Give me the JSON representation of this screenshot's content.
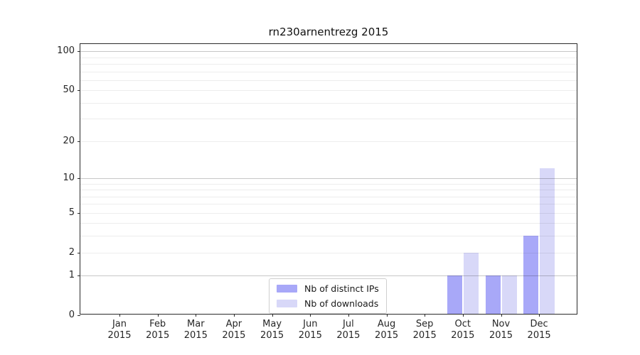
{
  "chart_data": {
    "type": "bar",
    "title": "rn230arnentrezg 2015",
    "categories": [
      "Jan 2015",
      "Feb 2015",
      "Mar 2015",
      "Apr 2015",
      "May 2015",
      "Jun 2015",
      "Jul 2015",
      "Aug 2015",
      "Sep 2015",
      "Oct 2015",
      "Nov 2015",
      "Dec 2015"
    ],
    "x_tick_months": [
      "Jan",
      "Feb",
      "Mar",
      "Apr",
      "May",
      "Jun",
      "Jul",
      "Aug",
      "Sep",
      "Oct",
      "Nov",
      "Dec"
    ],
    "x_tick_year": "2015",
    "series": [
      {
        "name": "Nb of distinct IPs",
        "color": "#a8a8f8",
        "values": [
          0,
          0,
          0,
          0,
          0,
          0,
          0,
          0,
          0,
          1,
          1,
          3
        ]
      },
      {
        "name": "Nb of downloads",
        "color": "#d8d8f8",
        "values": [
          0,
          0,
          0,
          0,
          0,
          0,
          0,
          0,
          0,
          2,
          1,
          12
        ]
      }
    ],
    "y_axis": {
      "scale": "log10(1+value)",
      "tick_values": [
        0,
        1,
        2,
        5,
        10,
        20,
        50,
        100
      ],
      "major_gridlines": [
        1,
        10,
        100
      ],
      "minor_gridlines": [
        2,
        3,
        4,
        5,
        6,
        7,
        8,
        9,
        20,
        30,
        40,
        50,
        60,
        70,
        80,
        90
      ],
      "ylim": [
        0,
        114
      ]
    },
    "grid": true,
    "legend_position": "lower center (inside plot)",
    "background_color": "#ffffff",
    "legend": {
      "items": [
        {
          "label": "Nb of distinct IPs",
          "color": "#a8a8f8"
        },
        {
          "label": "Nb of downloads",
          "color": "#d8d8f8"
        }
      ]
    }
  }
}
